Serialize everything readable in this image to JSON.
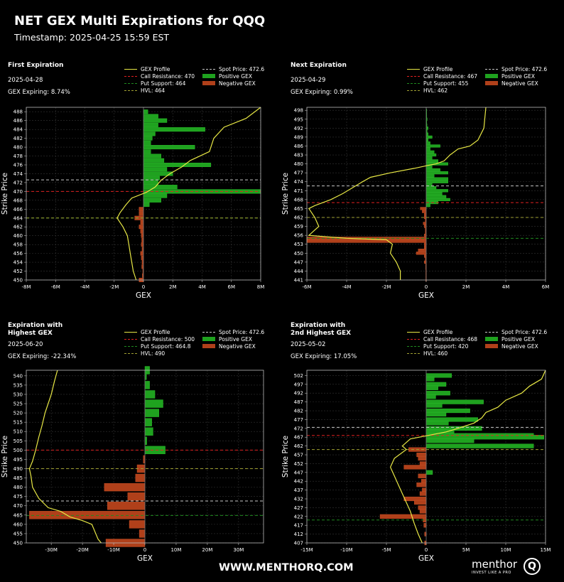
{
  "header": {
    "title": "NET GEX Multi Expirations for QQQ",
    "timestamp": "Timestamp: 2025-04-25 15:59 EST"
  },
  "footer": {
    "site": "WWW.MENTHORQ.COM",
    "logo_text": "menthor",
    "logo_mark": "Q",
    "logo_tagline": "INVEST LIKE A PRO"
  },
  "colors": {
    "background": "#000000",
    "profile": "#e8e845",
    "positive": "#1fa21f",
    "negative": "#b0401a",
    "call_resistance": "#e02020",
    "put_support": "#1f8a1f",
    "hvl": "#a0a032",
    "spot": "#c8c8c8"
  },
  "legend_labels": {
    "profile": "GEX Profile",
    "positive": "Positive GEX",
    "negative": "Negative GEX"
  },
  "chart_data": [
    {
      "type": "bar",
      "orientation": "horizontal",
      "title": "First Expiration",
      "date": "2025-04-28",
      "gex_expiring": "GEX Expiring: 8.74%",
      "xlabel": "GEX",
      "ylabel": "Strike Price",
      "xlim": [
        -8,
        8
      ],
      "ylim": [
        450,
        489
      ],
      "x_unit": "M",
      "xticks": [
        -8,
        -6,
        -4,
        -2,
        0,
        2,
        4,
        6,
        8
      ],
      "xtick_labels": [
        "-8M",
        "-6M",
        "-4M",
        "-2M",
        "0",
        "2M",
        "4M",
        "6M",
        "8M"
      ],
      "yticks": [
        450,
        452,
        454,
        456,
        458,
        460,
        462,
        464,
        466,
        468,
        470,
        472,
        474,
        476,
        478,
        480,
        482,
        484,
        486,
        488
      ],
      "levels": {
        "call_resistance": {
          "label": "Call Resistance: 470",
          "value": 470
        },
        "put_support": {
          "label": "Put Support: 464",
          "value": 464
        },
        "hvl": {
          "label": "HVL: 464",
          "value": 464
        },
        "spot": {
          "label": "Spot Price: 472.6",
          "value": 472.6
        }
      },
      "strikes": [
        488,
        487,
        486,
        485,
        484,
        483,
        482,
        481,
        480,
        479,
        478,
        477,
        476,
        475,
        474,
        473,
        472,
        471,
        470,
        469,
        468,
        467,
        466,
        465,
        464,
        463,
        462,
        461,
        460,
        459,
        458,
        457,
        456,
        455,
        454,
        453,
        452,
        451,
        450
      ],
      "values": [
        0.3,
        1.0,
        1.6,
        1.0,
        4.2,
        0.8,
        0.6,
        0.5,
        3.5,
        0.5,
        1.2,
        1.4,
        4.6,
        1.6,
        2.0,
        1.1,
        1.0,
        2.3,
        8.0,
        1.6,
        1.2,
        0.4,
        -0.3,
        -0.3,
        -0.6,
        -0.2,
        -0.3,
        -0.2,
        -0.15,
        -0.12,
        -0.15,
        -0.1,
        -0.2,
        -0.15,
        -0.1,
        -0.12,
        -0.05,
        -0.08,
        -0.3
      ],
      "profile": [
        [
          8.0,
          489
        ],
        [
          7.0,
          486.5
        ],
        [
          5.5,
          484.5
        ],
        [
          4.8,
          482
        ],
        [
          4.5,
          479
        ],
        [
          3.2,
          477
        ],
        [
          2.6,
          475.5
        ],
        [
          1.8,
          474
        ],
        [
          1.2,
          472.5
        ],
        [
          0.8,
          471
        ],
        [
          0.2,
          469.8
        ],
        [
          -0.8,
          468.5
        ],
        [
          -1.2,
          467
        ],
        [
          -1.6,
          465.2
        ],
        [
          -1.8,
          464
        ],
        [
          -1.4,
          462
        ],
        [
          -1.1,
          460
        ],
        [
          -1.0,
          458
        ],
        [
          -0.9,
          456
        ],
        [
          -0.8,
          454
        ],
        [
          -0.7,
          452
        ],
        [
          -0.5,
          450
        ]
      ]
    },
    {
      "type": "bar",
      "orientation": "horizontal",
      "title": "Next Expiration",
      "date": "2025-04-29",
      "gex_expiring": "GEX Expiring: 0.99%",
      "xlabel": "GEX",
      "ylabel": "Strike Price",
      "xlim": [
        -6,
        6
      ],
      "ylim": [
        441,
        499
      ],
      "x_unit": "M",
      "xticks": [
        -6,
        -4,
        -2,
        0,
        2,
        4,
        6
      ],
      "xtick_labels": [
        "-6M",
        "-4M",
        "-2M",
        "0",
        "2M",
        "4M",
        "6M"
      ],
      "yticks": [
        441,
        444,
        447,
        450,
        453,
        456,
        459,
        462,
        465,
        468,
        471,
        474,
        477,
        480,
        483,
        486,
        489,
        492,
        495,
        498
      ],
      "levels": {
        "call_resistance": {
          "label": "Call Resistance: 467",
          "value": 467
        },
        "put_support": {
          "label": "Put Support: 455",
          "value": 455
        },
        "hvl": {
          "label": "HVL: 462",
          "value": 462
        },
        "spot": {
          "label": "Spot Price: 472.6",
          "value": 472.6
        }
      },
      "strikes": [
        498,
        497,
        496,
        495,
        494,
        493,
        492,
        491,
        490,
        489,
        488,
        487,
        486,
        485,
        484,
        483,
        482,
        481,
        480,
        479,
        478,
        477,
        476,
        475,
        474,
        473,
        472,
        471,
        470,
        469,
        468,
        467,
        466,
        465,
        464,
        463,
        462,
        461,
        460,
        459,
        458,
        457,
        456,
        455,
        454,
        453,
        452,
        451,
        450,
        449,
        448,
        447,
        446,
        445,
        444,
        443,
        442,
        441
      ],
      "values": [
        0.02,
        0.02,
        0.03,
        0.05,
        0.03,
        0.04,
        0.1,
        0.05,
        0.1,
        0.3,
        0.1,
        0.2,
        0.7,
        0.2,
        0.4,
        0.5,
        0.3,
        0.6,
        1.1,
        0.3,
        0.7,
        1.1,
        0.4,
        1.1,
        1.1,
        0.3,
        0.5,
        1.1,
        0.8,
        1.0,
        1.2,
        0.6,
        0.2,
        -0.3,
        -0.2,
        -0.1,
        -0.1,
        -0.05,
        -0.15,
        -0.1,
        -0.05,
        -0.05,
        -0.1,
        -6.0,
        -6.0,
        -0.1,
        -0.1,
        -0.4,
        -0.5,
        -0.1,
        -0.05,
        -0.1,
        -0.03,
        -0.03,
        -0.02,
        -0.02,
        -0.02,
        -0.02
      ],
      "profile": [
        [
          3.0,
          499
        ],
        [
          2.9,
          492
        ],
        [
          2.6,
          488
        ],
        [
          2.2,
          486
        ],
        [
          1.6,
          485
        ],
        [
          1.2,
          483
        ],
        [
          0.9,
          481
        ],
        [
          0.5,
          480
        ],
        [
          0.1,
          479.5
        ],
        [
          -0.6,
          478.5
        ],
        [
          -1.8,
          477
        ],
        [
          -2.8,
          475.5
        ],
        [
          -3.2,
          474
        ],
        [
          -3.7,
          472
        ],
        [
          -4.2,
          470
        ],
        [
          -4.8,
          468
        ],
        [
          -5.6,
          466
        ],
        [
          -5.9,
          465
        ],
        [
          -5.6,
          462
        ],
        [
          -5.4,
          459
        ],
        [
          -5.9,
          456
        ],
        [
          -4.0,
          455
        ],
        [
          -2.0,
          454.5
        ],
        [
          -1.7,
          453
        ],
        [
          -1.8,
          450
        ],
        [
          -1.5,
          447
        ],
        [
          -1.3,
          444
        ],
        [
          -1.3,
          441
        ]
      ]
    },
    {
      "type": "bar",
      "orientation": "horizontal",
      "title": "Expiration with Highest GEX",
      "date": "2025-06-20",
      "gex_expiring": "GEX Expiring: -22.34%",
      "xlabel": "GEX",
      "ylabel": "Strike Price",
      "xlim": [
        -38,
        38
      ],
      "ylim": [
        450,
        543
      ],
      "x_unit": "M",
      "xticks": [
        -30,
        -20,
        -10,
        0,
        10,
        20,
        30
      ],
      "xtick_labels": [
        "-30M",
        "-20M",
        "-10M",
        "0",
        "10M",
        "20M",
        "30M"
      ],
      "yticks": [
        450,
        455,
        460,
        465,
        470,
        475,
        480,
        485,
        490,
        495,
        500,
        505,
        510,
        515,
        520,
        525,
        530,
        535,
        540
      ],
      "levels": {
        "call_resistance": {
          "label": "Call Resistance: 500",
          "value": 500
        },
        "put_support": {
          "label": "Put Support: 464.8",
          "value": 464.8
        },
        "hvl": {
          "label": "HVL: 490",
          "value": 490
        },
        "spot": {
          "label": "Spot Price: 472.6",
          "value": 472.6
        }
      },
      "strikes": [
        543,
        540,
        535,
        530,
        525,
        520,
        515,
        510,
        505,
        500,
        495,
        490,
        485,
        480,
        475,
        470,
        465,
        460,
        455,
        450
      ],
      "values": [
        1.5,
        0.5,
        1.5,
        3.2,
        5.8,
        4.5,
        2.2,
        2.6,
        0.6,
        6.5,
        -0.5,
        -2.5,
        -3.0,
        -13.0,
        -5.5,
        -12.0,
        -37.0,
        -5.0,
        -1.8,
        -12.5
      ],
      "profile": [
        [
          -28,
          543
        ],
        [
          -29,
          537
        ],
        [
          -30,
          530
        ],
        [
          -31,
          525
        ],
        [
          -32,
          520
        ],
        [
          -33,
          513
        ],
        [
          -34,
          507
        ],
        [
          -35,
          500
        ],
        [
          -36,
          494
        ],
        [
          -37,
          490
        ],
        [
          -36.5,
          486
        ],
        [
          -36,
          480
        ],
        [
          -34,
          474
        ],
        [
          -31,
          469
        ],
        [
          -27,
          467
        ],
        [
          -24,
          464
        ],
        [
          -20,
          462
        ],
        [
          -17,
          460
        ],
        [
          -16,
          456
        ],
        [
          -15,
          452
        ],
        [
          -14,
          450
        ]
      ]
    },
    {
      "type": "bar",
      "orientation": "horizontal",
      "title": "Expiration with 2nd Highest GEX",
      "date": "2025-05-02",
      "gex_expiring": "GEX Expiring: 17.05%",
      "xlabel": "GEX",
      "ylabel": "Strike Price",
      "xlim": [
        -15,
        15
      ],
      "ylim": [
        407,
        505
      ],
      "x_unit": "M",
      "xticks": [
        -15,
        -10,
        -5,
        0,
        5,
        10,
        15
      ],
      "xtick_labels": [
        "-15M",
        "-10M",
        "-5M",
        "0",
        "5M",
        "10M",
        "15M"
      ],
      "yticks": [
        407,
        412,
        417,
        422,
        427,
        432,
        437,
        442,
        447,
        452,
        457,
        462,
        467,
        472,
        477,
        482,
        487,
        492,
        497,
        502
      ],
      "levels": {
        "call_resistance": {
          "label": "Call Resistance: 468",
          "value": 468
        },
        "put_support": {
          "label": "Put Support: 420",
          "value": 420
        },
        "hvl": {
          "label": "HVL: 460",
          "value": 460
        },
        "spot": {
          "label": "Spot Price: 472.6",
          "value": 472.6
        }
      },
      "strikes": [
        502,
        500,
        497,
        495,
        492,
        490,
        487,
        485,
        482,
        480,
        477,
        475,
        472,
        470,
        468,
        467,
        465,
        462,
        460,
        457,
        455,
        452,
        450,
        447,
        445,
        442,
        440,
        437,
        435,
        432,
        430,
        427,
        425,
        422,
        420,
        417,
        412,
        407
      ],
      "values": [
        3.2,
        1.0,
        2.5,
        1.5,
        3.0,
        1.2,
        7.2,
        2.0,
        5.5,
        2.5,
        6.5,
        2.8,
        7.0,
        3.5,
        13.5,
        14.8,
        6.0,
        13.5,
        -2.2,
        -1.2,
        -1.0,
        -0.8,
        -2.8,
        0.8,
        -1.0,
        -0.6,
        -1.2,
        -0.5,
        -0.8,
        -2.8,
        -1.5,
        -1.0,
        -0.8,
        -5.8,
        -0.4,
        -0.3,
        -0.2,
        -0.2
      ],
      "profile": [
        [
          15,
          505
        ],
        [
          14.5,
          500
        ],
        [
          13,
          496
        ],
        [
          12,
          492
        ],
        [
          10,
          488
        ],
        [
          9,
          484
        ],
        [
          7.5,
          481
        ],
        [
          7,
          478
        ],
        [
          6,
          475
        ],
        [
          4,
          472
        ],
        [
          2.5,
          470
        ],
        [
          -2,
          466
        ],
        [
          -3,
          462
        ],
        [
          -2.5,
          460
        ],
        [
          -4,
          455
        ],
        [
          -4.5,
          450
        ],
        [
          -4,
          445
        ],
        [
          -3.5,
          440
        ],
        [
          -3,
          435
        ],
        [
          -2.5,
          430
        ],
        [
          -2,
          425
        ],
        [
          -1.5,
          418
        ],
        [
          -1,
          412
        ],
        [
          -0.5,
          407
        ]
      ]
    }
  ]
}
